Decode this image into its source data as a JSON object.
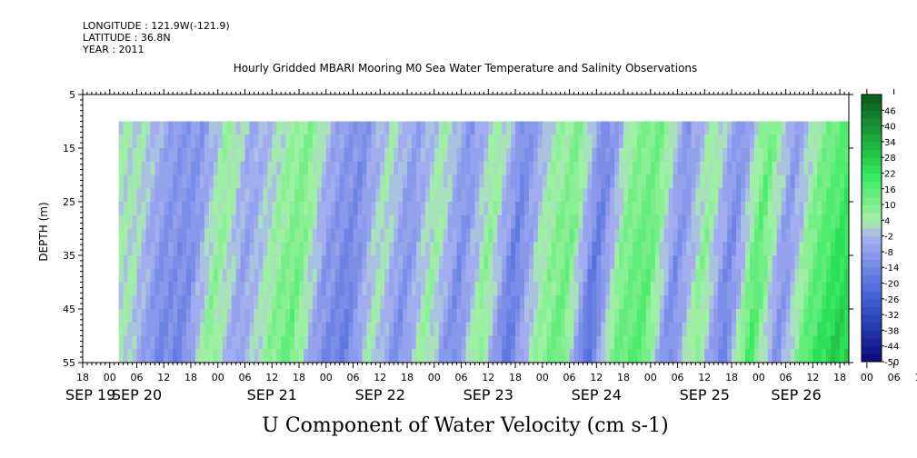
{
  "header": {
    "longitude": "LONGITUDE : 121.9W(-121.9)",
    "latitude": "LATITUDE : 36.8N",
    "year": "YEAR : 2011",
    "title": "Hourly Gridded MBARI Mooring M0 Sea Water Temperature and Salinity Observations"
  },
  "chart_data": {
    "type": "heatmap",
    "title": "Hourly Gridded MBARI Mooring M0 Sea Water Temperature and Salinity Observations",
    "xlabel": "U Component of Water Velocity (cm s-1)",
    "ylabel": "DEPTH (m)",
    "ylim": [
      55,
      5
    ],
    "y_ticks": [
      "5",
      "15",
      "25",
      "35",
      "45",
      "55"
    ],
    "x_hour_ticks": [
      "18",
      "00",
      "06",
      "12",
      "18",
      "00",
      "06",
      "12",
      "18",
      "00",
      "06",
      "12",
      "18",
      "00",
      "06",
      "12",
      "18",
      "00",
      "06",
      "12",
      "18",
      "00",
      "06",
      "12",
      "18",
      "00",
      "06",
      "12",
      "18",
      "00",
      "06",
      "12",
      "18"
    ],
    "x_date_labels": [
      "SEP 19",
      "SEP 20",
      "SEP 21",
      "SEP 22",
      "SEP 23",
      "SEP 24",
      "SEP 25",
      "SEP 26"
    ],
    "x_range_hours_from_sep19_18": [
      0,
      170
    ],
    "data_depth_range": [
      10,
      55
    ],
    "data_start": "SEP 20 02",
    "colorbar_labels": [
      "46",
      "40",
      "34",
      "28",
      "22",
      "16",
      "10",
      "4",
      "-2",
      "-8",
      "-14",
      "-20",
      "-26",
      "-32",
      "-38",
      "-44",
      "-50"
    ],
    "colorbar_range": [
      -50,
      52
    ],
    "colorbar_step": 3,
    "colors": {
      "negative_deep": "#0a0a7a",
      "negative_mid": "#3f5fd8",
      "negative_light": "#a9b2f2",
      "positive_light": "#a8f2a8",
      "positive_mid": "#2ee85a",
      "positive_deep": "#0a5a1a"
    },
    "series": [
      {
        "name": "surface_column_profile_cm_s",
        "x_hours": [
          8,
          14,
          20,
          26,
          32,
          38,
          44,
          50,
          56,
          62,
          68,
          74,
          80,
          86,
          92,
          98,
          104,
          110,
          116,
          122,
          128,
          134,
          140,
          146,
          152,
          158,
          164,
          170
        ],
        "values": [
          4,
          2,
          -10,
          -12,
          8,
          -6,
          4,
          12,
          -8,
          -14,
          4,
          -10,
          6,
          -12,
          8,
          -16,
          4,
          12,
          -18,
          10,
          14,
          -12,
          8,
          -14,
          16,
          -10,
          12,
          22
        ]
      }
    ]
  }
}
